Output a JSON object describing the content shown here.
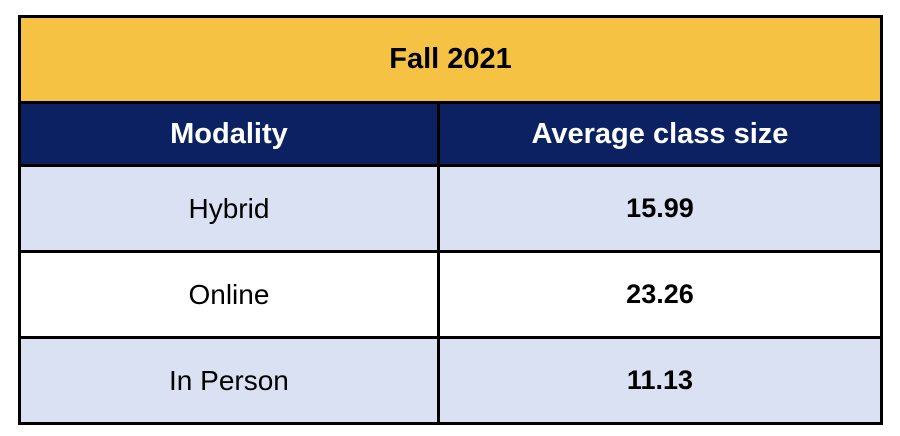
{
  "table": {
    "title": "Fall 2021",
    "columns": {
      "modality": "Modality",
      "value": "Average class size"
    },
    "rows": [
      {
        "modality": "Hybrid",
        "value": "15.99"
      },
      {
        "modality": "Online",
        "value": "23.26"
      },
      {
        "modality": "In Person",
        "value": "11.13"
      }
    ]
  },
  "colors": {
    "title_bg": "#f5c243",
    "header_bg": "#0b2161",
    "header_text": "#ffffff",
    "row_alt_bg": "#dae1f2",
    "row_bg": "#ffffff",
    "border": "#000000",
    "text": "#000000"
  },
  "chart_data": {
    "type": "table",
    "title": "Fall 2021",
    "columns": [
      "Modality",
      "Average class size"
    ],
    "categories": [
      "Hybrid",
      "Online",
      "In Person"
    ],
    "values": [
      15.99,
      23.26,
      11.13
    ]
  }
}
